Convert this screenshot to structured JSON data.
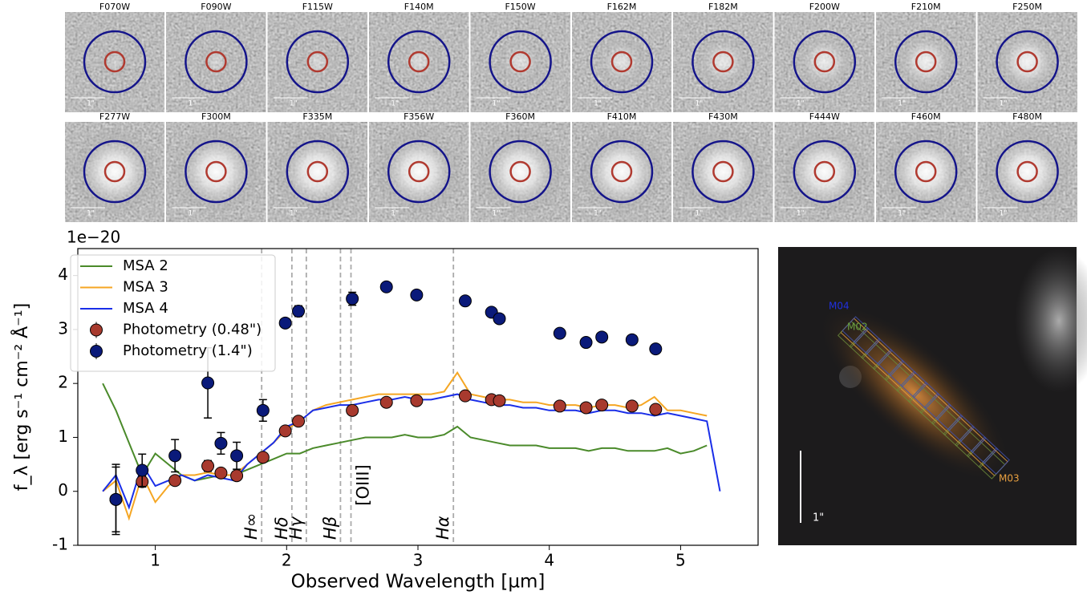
{
  "cutouts": {
    "filters": [
      "F070W",
      "F090W",
      "F115W",
      "F140M",
      "F150W",
      "F162M",
      "F182M",
      "F200W",
      "F210M",
      "F250M",
      "F277W",
      "F300M",
      "F335M",
      "F356W",
      "F360M",
      "F410M",
      "F430M",
      "F444W",
      "F460M",
      "F480M"
    ],
    "scale_label": "1\""
  },
  "chart_data": {
    "type": "line",
    "offset_label": "1e−20",
    "xlabel": "Observed Wavelength [µm]",
    "ylabel": "f_λ [erg s⁻¹ cm⁻² Å⁻¹]",
    "xlim": [
      0.41,
      5.59
    ],
    "ylim": [
      -1,
      4.5
    ],
    "xticks": [
      1,
      2,
      3,
      4,
      5
    ],
    "yticks": [
      -1,
      0,
      1,
      2,
      3,
      4
    ],
    "x": [
      0.6,
      0.7,
      0.8,
      0.9,
      1.0,
      1.1,
      1.2,
      1.3,
      1.4,
      1.5,
      1.6,
      1.7,
      1.8,
      1.9,
      2.0,
      2.1,
      2.2,
      2.3,
      2.4,
      2.5,
      2.6,
      2.7,
      2.8,
      2.9,
      3.0,
      3.1,
      3.2,
      3.3,
      3.4,
      3.5,
      3.6,
      3.7,
      3.8,
      3.9,
      4.0,
      4.1,
      4.2,
      4.3,
      4.4,
      4.5,
      4.6,
      4.7,
      4.8,
      4.9,
      5.0,
      5.1,
      5.2,
      5.3
    ],
    "series": [
      {
        "name": "MSA 2",
        "color": "#4a8a2a",
        "values": [
          2.0,
          1.5,
          0.9,
          0.3,
          0.7,
          0.5,
          0.3,
          0.2,
          0.25,
          0.3,
          0.3,
          0.4,
          0.5,
          0.6,
          0.7,
          0.7,
          0.8,
          0.85,
          0.9,
          0.95,
          1.0,
          1.0,
          1.0,
          1.05,
          1.0,
          1.0,
          1.05,
          1.2,
          1.0,
          0.95,
          0.9,
          0.85,
          0.85,
          0.85,
          0.8,
          0.8,
          0.8,
          0.75,
          0.8,
          0.8,
          0.75,
          0.75,
          0.75,
          0.8,
          0.7,
          0.75,
          0.85,
          null
        ]
      },
      {
        "name": "MSA 3",
        "color": "#f5a623",
        "values": [
          0.0,
          0.2,
          -0.5,
          0.3,
          -0.2,
          0.1,
          0.3,
          0.3,
          0.35,
          0.3,
          0.3,
          0.5,
          0.7,
          0.9,
          1.15,
          1.3,
          1.5,
          1.6,
          1.65,
          1.7,
          1.75,
          1.8,
          1.8,
          1.8,
          1.8,
          1.8,
          1.85,
          2.2,
          1.8,
          1.75,
          1.7,
          1.7,
          1.65,
          1.65,
          1.6,
          1.6,
          1.6,
          1.55,
          1.6,
          1.6,
          1.55,
          1.6,
          1.75,
          1.5,
          1.5,
          1.45,
          1.4,
          null
        ]
      },
      {
        "name": "MSA 4",
        "color": "#1a2ee8",
        "values": [
          0.0,
          0.3,
          -0.3,
          0.5,
          0.1,
          0.2,
          0.3,
          0.2,
          0.3,
          0.25,
          0.2,
          0.5,
          0.7,
          0.9,
          1.2,
          1.3,
          1.5,
          1.55,
          1.6,
          1.6,
          1.65,
          1.7,
          1.7,
          1.75,
          1.7,
          1.7,
          1.75,
          1.8,
          1.7,
          1.65,
          1.6,
          1.6,
          1.55,
          1.55,
          1.5,
          1.5,
          1.5,
          1.45,
          1.5,
          1.5,
          1.45,
          1.45,
          1.4,
          1.45,
          1.4,
          1.35,
          1.3,
          0.0
        ]
      }
    ],
    "photometry": [
      {
        "name": "Photometry (0.48\")",
        "color": "#a83a2e",
        "x": [
          0.7,
          0.9,
          1.15,
          1.4,
          1.5,
          1.62,
          1.82,
          1.99,
          2.09,
          2.5,
          2.76,
          2.99,
          3.36,
          3.56,
          3.62,
          4.08,
          4.28,
          4.4,
          4.63,
          4.81
        ],
        "values": [
          -0.15,
          0.18,
          0.2,
          0.47,
          0.34,
          0.29,
          0.63,
          1.12,
          1.3,
          1.5,
          1.65,
          1.68,
          1.77,
          1.7,
          1.68,
          1.58,
          1.55,
          1.6,
          1.58,
          1.52
        ],
        "errors": [
          0.6,
          0.1,
          0.08,
          0.1,
          0.06,
          0.06,
          0.05,
          0.05,
          0.05,
          0.05,
          0.04,
          0.04,
          0.04,
          0.04,
          0.04,
          0.04,
          0.04,
          0.04,
          0.04,
          0.04
        ]
      },
      {
        "name": "Photometry (1.4\")",
        "color": "#0a1a7a",
        "x": [
          0.7,
          0.9,
          1.15,
          1.4,
          1.5,
          1.62,
          1.82,
          1.99,
          2.09,
          2.5,
          2.76,
          2.99,
          3.36,
          3.56,
          3.62,
          4.08,
          4.28,
          4.4,
          4.63,
          4.81
        ],
        "values": [
          -0.15,
          0.39,
          0.66,
          2.01,
          0.89,
          0.66,
          1.5,
          3.12,
          3.34,
          3.57,
          3.79,
          3.64,
          3.53,
          3.32,
          3.2,
          2.93,
          2.76,
          2.86,
          2.81,
          2.64
        ],
        "errors": [
          0.65,
          0.3,
          0.3,
          0.65,
          0.2,
          0.25,
          0.2,
          0.05,
          0.1,
          0.12,
          0.05,
          0.05,
          0.05,
          0.05,
          0.05,
          0.05,
          0.05,
          0.05,
          0.05,
          0.05
        ]
      }
    ],
    "lines": [
      {
        "value": 1.81,
        "label": "H∞"
      },
      {
        "value": 2.04,
        "label": "Hδ"
      },
      {
        "value": 2.15,
        "label": "Hγ"
      },
      {
        "value": 2.41,
        "label": "Hβ"
      },
      {
        "value": 2.49,
        "label": "[OIII]"
      },
      {
        "value": 3.27,
        "label": "Hα"
      }
    ],
    "legend": "upper left"
  },
  "right_image": {
    "slit_labels": [
      "M04",
      "M02",
      "M03"
    ],
    "scale_label": "1\""
  }
}
